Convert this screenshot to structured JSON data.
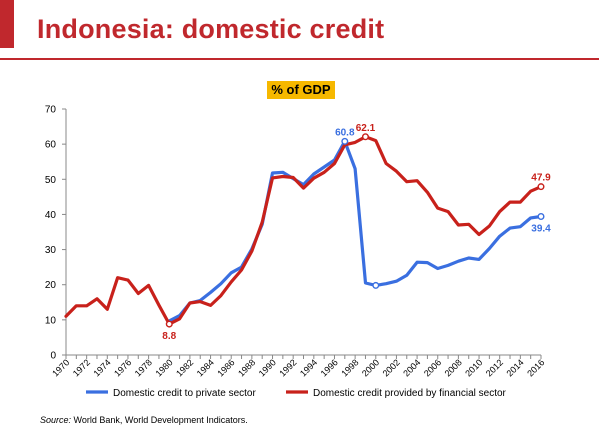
{
  "page": {
    "title": "Indonesia: domestic credit"
  },
  "source": {
    "label": "Source:",
    "text": " World Bank, World Development Indicators."
  },
  "colors": {
    "accent": "#c0282d",
    "badge": "#f6b800",
    "private": "#3a6fe0",
    "financial": "#c8211b"
  },
  "chart_data": {
    "type": "line",
    "title": "% of GDP",
    "xlabel": "",
    "ylabel": "",
    "ylim": [
      0,
      70
    ],
    "yticks": [
      0,
      10,
      20,
      30,
      40,
      50,
      60,
      70
    ],
    "xlim": [
      1970,
      2016
    ],
    "xticks": [
      "1970",
      "1972",
      "1974",
      "1976",
      "1978",
      "1980",
      "1982",
      "1984",
      "1986",
      "1988",
      "1990",
      "1992",
      "1994",
      "1996",
      "1998",
      "2000",
      "2002",
      "2004",
      "2006",
      "2008",
      "2010",
      "2012",
      "2014",
      "2016"
    ],
    "grid": false,
    "legend": "bottom",
    "x": [
      1970,
      1971,
      1972,
      1973,
      1974,
      1975,
      1976,
      1977,
      1978,
      1979,
      1980,
      1981,
      1982,
      1983,
      1984,
      1985,
      1986,
      1987,
      1988,
      1989,
      1990,
      1991,
      1992,
      1993,
      1994,
      1995,
      1996,
      1997,
      1998,
      1999,
      2000,
      2001,
      2002,
      2003,
      2004,
      2005,
      2006,
      2007,
      2008,
      2009,
      2010,
      2011,
      2012,
      2013,
      2014,
      2015,
      2016
    ],
    "series": [
      {
        "name": "Domestic credit to private sector",
        "color": "#3a6fe0",
        "values": [
          null,
          null,
          null,
          null,
          null,
          null,
          null,
          null,
          null,
          null,
          9.7,
          11.2,
          14.8,
          15.5,
          17.8,
          20.3,
          23.4,
          25.0,
          30.2,
          37.2,
          51.8,
          52.0,
          50.2,
          48.5,
          51.5,
          53.5,
          55.5,
          60.8,
          53.0,
          20.5,
          19.8,
          20.3,
          21.0,
          22.7,
          26.4,
          26.3,
          24.6,
          25.5,
          26.7,
          27.6,
          27.2,
          30.3,
          33.8,
          36.1,
          36.5,
          39.0,
          39.4
        ]
      },
      {
        "name": "Domestic credit provided by financial sector",
        "color": "#c8211b",
        "values": [
          11.0,
          14.0,
          14.0,
          16.0,
          13.0,
          22.0,
          21.3,
          17.5,
          19.8,
          14.2,
          8.8,
          10.3,
          14.8,
          15.2,
          14.1,
          16.9,
          20.8,
          24.2,
          29.6,
          37.8,
          50.4,
          50.8,
          50.5,
          47.5,
          50.3,
          52.0,
          54.5,
          59.8,
          60.5,
          62.1,
          61.0,
          54.5,
          52.3,
          49.3,
          49.6,
          46.3,
          41.8,
          40.8,
          37.0,
          37.2,
          34.3,
          36.7,
          40.8,
          43.5,
          43.5,
          46.6,
          47.9
        ]
      }
    ],
    "annotations": [
      {
        "text": "60.8",
        "series": 0,
        "x": 1997,
        "y": 60.8,
        "anchor": "above"
      },
      {
        "text": "62.1",
        "series": 1,
        "x": 1999,
        "y": 62.1,
        "anchor": "above"
      },
      {
        "text": "8.8",
        "series": 1,
        "x": 1980,
        "y": 8.8,
        "anchor": "below"
      },
      {
        "text": "47.9",
        "series": 1,
        "x": 2016,
        "y": 47.9,
        "anchor": "above"
      },
      {
        "text": "39.4",
        "series": 0,
        "x": 2016,
        "y": 39.4,
        "anchor": "below"
      }
    ],
    "markers": [
      {
        "series": 0,
        "x": 1997,
        "y": 60.8
      },
      {
        "series": 0,
        "x": 2000,
        "y": 19.8
      },
      {
        "series": 0,
        "x": 2016,
        "y": 39.4
      },
      {
        "series": 1,
        "x": 1980,
        "y": 8.8
      },
      {
        "series": 1,
        "x": 1999,
        "y": 62.1
      },
      {
        "series": 1,
        "x": 2016,
        "y": 47.9
      }
    ]
  }
}
